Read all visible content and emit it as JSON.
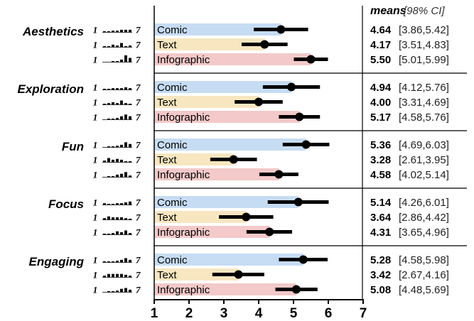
{
  "chart_data": {
    "type": "bar",
    "header": {
      "means": "means",
      "ci": "[98% CI]"
    },
    "xlim": [
      1,
      7
    ],
    "xticks": [
      "1",
      "2",
      "3",
      "4",
      "5",
      "6",
      "7"
    ],
    "scale_labels": {
      "min": "1",
      "max": "7"
    },
    "bar_colors": {
      "Comic": "#c6dcf3",
      "Text": "#f7e6c0",
      "Infographic": "#f3c9c9"
    },
    "groups": [
      {
        "name": "Aesthetics",
        "rows": [
          {
            "condition": "Comic",
            "mean": 4.64,
            "mean_label": "4.64",
            "ci": [
              3.86,
              5.42
            ],
            "ci_label": "[3.86,5.42]",
            "hist": [
              1,
              1,
              2,
              2,
              3,
              3,
              3
            ]
          },
          {
            "condition": "Text",
            "mean": 4.17,
            "mean_label": "4.17",
            "ci": [
              3.51,
              4.83
            ],
            "ci_label": "[3.51,4.83]",
            "hist": [
              1,
              1,
              3,
              2,
              5,
              1,
              2
            ]
          },
          {
            "condition": "Infographic",
            "mean": 5.5,
            "mean_label": "5.50",
            "ci": [
              5.01,
              5.99
            ],
            "ci_label": "[5.01,5.99]",
            "hist": [
              0,
              0,
              1,
              1,
              3,
              8,
              5
            ]
          }
        ]
      },
      {
        "name": "Exploration",
        "rows": [
          {
            "condition": "Comic",
            "mean": 4.94,
            "mean_label": "4.94",
            "ci": [
              4.12,
              5.76
            ],
            "ci_label": "[4.12,5.76]",
            "hist": [
              1,
              1,
              2,
              2,
              2,
              3,
              2
            ]
          },
          {
            "condition": "Text",
            "mean": 4.0,
            "mean_label": "4.00",
            "ci": [
              3.31,
              4.69
            ],
            "ci_label": "[3.31,4.69]",
            "hist": [
              1,
              2,
              3,
              2,
              5,
              2,
              1
            ]
          },
          {
            "condition": "Infographic",
            "mean": 5.17,
            "mean_label": "5.17",
            "ci": [
              4.58,
              5.76
            ],
            "ci_label": "[4.58,5.76]",
            "hist": [
              0,
              1,
              1,
              2,
              4,
              6,
              4
            ]
          }
        ]
      },
      {
        "name": "Fun",
        "rows": [
          {
            "condition": "Comic",
            "mean": 5.36,
            "mean_label": "5.36",
            "ci": [
              4.69,
              6.03
            ],
            "ci_label": "[4.69,6.03]",
            "hist": [
              0,
              1,
              1,
              2,
              3,
              6,
              4
            ]
          },
          {
            "condition": "Text",
            "mean": 3.28,
            "mean_label": "3.28",
            "ci": [
              2.61,
              3.95
            ],
            "ci_label": "[2.61,3.95]",
            "hist": [
              2,
              5,
              3,
              4,
              3,
              1,
              1
            ]
          },
          {
            "condition": "Infographic",
            "mean": 4.58,
            "mean_label": "4.58",
            "ci": [
              4.02,
              5.14
            ],
            "ci_label": "[4.02,5.14]",
            "hist": [
              0,
              1,
              1,
              3,
              4,
              6,
              2
            ]
          }
        ]
      },
      {
        "name": "Focus",
        "rows": [
          {
            "condition": "Comic",
            "mean": 5.14,
            "mean_label": "5.14",
            "ci": [
              4.26,
              6.01
            ],
            "ci_label": "[4.26,6.01]",
            "hist": [
              2,
              1,
              1,
              2,
              2,
              3,
              4
            ]
          },
          {
            "condition": "Text",
            "mean": 3.64,
            "mean_label": "3.64",
            "ci": [
              2.86,
              4.42
            ],
            "ci_label": "[2.86,4.42]",
            "hist": [
              2,
              4,
              3,
              3,
              3,
              2,
              1
            ]
          },
          {
            "condition": "Infographic",
            "mean": 4.31,
            "mean_label": "4.31",
            "ci": [
              3.65,
              4.96
            ],
            "ci_label": "[3.65,4.96]",
            "hist": [
              1,
              1,
              2,
              4,
              3,
              5,
              2
            ]
          }
        ]
      },
      {
        "name": "Engaging",
        "rows": [
          {
            "condition": "Comic",
            "mean": 5.28,
            "mean_label": "5.28",
            "ci": [
              4.58,
              5.98
            ],
            "ci_label": "[4.58,5.98]",
            "hist": [
              1,
              1,
              1,
              2,
              3,
              5,
              3
            ]
          },
          {
            "condition": "Text",
            "mean": 3.42,
            "mean_label": "3.42",
            "ci": [
              2.67,
              4.16
            ],
            "ci_label": "[2.67,4.16]",
            "hist": [
              2,
              4,
              4,
              4,
              4,
              3,
              2
            ]
          },
          {
            "condition": "Infographic",
            "mean": 5.08,
            "mean_label": "5.08",
            "ci": [
              4.48,
              5.69
            ],
            "ci_label": "[4.48,5.69]",
            "hist": [
              0,
              1,
              1,
              2,
              4,
              5,
              3
            ]
          }
        ]
      }
    ]
  }
}
